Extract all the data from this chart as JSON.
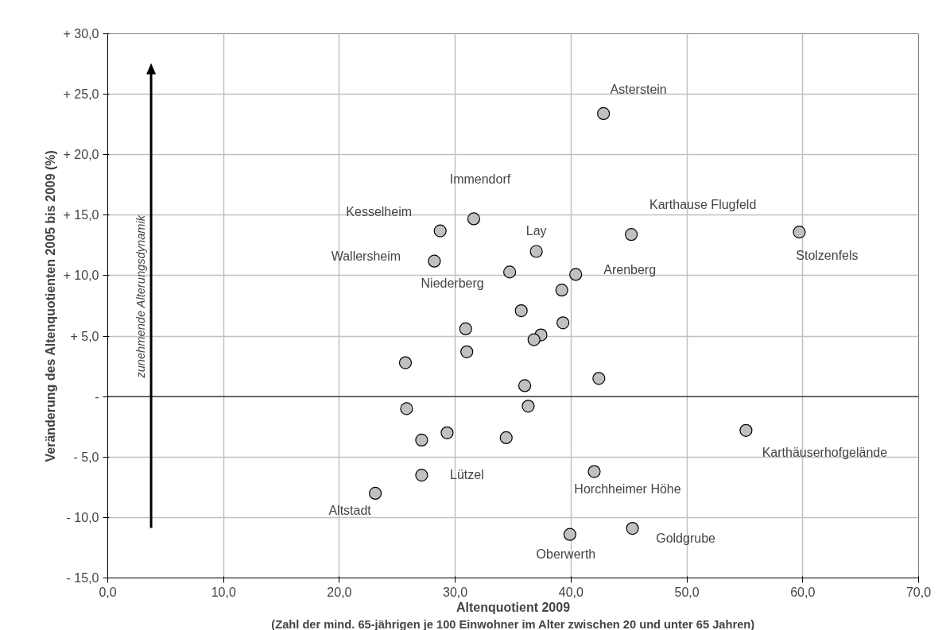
{
  "chart_data": {
    "type": "scatter",
    "xlabel": "Altenquotient 2009",
    "ylabel": "Veränderung des Altenquotienten 2005 bis 2009 (%)",
    "x": [
      42.8,
      31.6,
      28.7,
      45.2,
      59.7,
      37.0,
      28.2,
      34.7,
      40.4,
      39.2,
      35.7,
      39.3,
      30.9,
      37.4,
      36.8,
      31.0,
      25.7,
      42.4,
      36.0,
      25.8,
      36.3,
      29.3,
      27.1,
      34.4,
      55.1,
      27.1,
      42.0,
      23.1,
      39.9,
      45.3
    ],
    "series": [
      {
        "color": "#c0c0c0",
        "values": [
          23.4,
          14.7,
          13.7,
          13.4,
          13.6,
          12.0,
          11.2,
          10.3,
          10.1,
          8.8,
          7.1,
          6.1,
          5.6,
          5.1,
          4.7,
          3.7,
          2.8,
          1.5,
          0.9,
          -1.0,
          -0.8,
          -3.0,
          -3.6,
          -3.4,
          -2.8,
          -6.5,
          -6.2,
          -8.0,
          -11.4,
          -10.9
        ]
      }
    ],
    "annotations": [
      {
        "text": "Asterstein",
        "x": 42.8,
        "y": 23.4
      },
      {
        "text": "Immendorf",
        "x": 31.6,
        "y": 14.7
      },
      {
        "text": "Kesselheim",
        "x": 28.7,
        "y": 13.7
      },
      {
        "text": "Karthause Flugfeld",
        "x": 45.2,
        "y": 13.4
      },
      {
        "text": "Stolzenfels",
        "x": 59.7,
        "y": 13.6
      },
      {
        "text": "Lay",
        "x": 37.0,
        "y": 12.0
      },
      {
        "text": "Wallersheim",
        "x": 28.2,
        "y": 11.2
      },
      {
        "text": "Niederberg",
        "x": 34.7,
        "y": 10.3
      },
      {
        "text": "Arenberg",
        "x": 40.4,
        "y": 10.1
      },
      {
        "text": "Karthäuserhofgelände",
        "x": 55.1,
        "y": -2.8
      },
      {
        "text": "Lützel",
        "x": 27.1,
        "y": -6.5
      },
      {
        "text": "Horchheimer Höhe",
        "x": 42.0,
        "y": -6.2
      },
      {
        "text": "Altstadt",
        "x": 23.1,
        "y": -8.0
      },
      {
        "text": "Oberwerth",
        "x": 39.9,
        "y": -11.4
      },
      {
        "text": "Goldgrube",
        "x": 45.3,
        "y": -10.9
      },
      "zunehmende Alterungsdynamik",
      "(Zahl der mind. 65-jährigen je 100 Einwohner im Alter zwischen 20 und unter 65 Jahren)"
    ],
    "xlim": [
      0,
      70
    ],
    "ylim": [
      -15,
      30
    ],
    "xticks": [
      {
        "value": 0,
        "label": "0,0"
      },
      {
        "value": 10,
        "label": "10,0"
      },
      {
        "value": 20,
        "label": "20,0"
      },
      {
        "value": 30,
        "label": "30,0"
      },
      {
        "value": 40,
        "label": "40,0"
      },
      {
        "value": 50,
        "label": "50,0"
      },
      {
        "value": 60,
        "label": "60,0"
      },
      {
        "value": 70,
        "label": "70,0"
      }
    ],
    "yticks": [
      {
        "value": -15,
        "label": "- 15,0"
      },
      {
        "value": -10,
        "label": "- 10,0"
      },
      {
        "value": -5,
        "label": "- 5,0"
      },
      {
        "value": 0,
        "label": "-"
      },
      {
        "value": 5,
        "label": "+ 5,0"
      },
      {
        "value": 10,
        "label": "+ 10,0"
      },
      {
        "value": 15,
        "label": "+ 15,0"
      },
      {
        "value": 20,
        "label": "+ 20,0"
      },
      {
        "value": 25,
        "label": "+ 25,0"
      },
      {
        "value": 30,
        "label": "+ 30,0"
      }
    ],
    "ref_lines": [
      {
        "axis": "y",
        "value": 0,
        "color": "#000000"
      }
    ],
    "grid": true,
    "marker": "circle"
  }
}
